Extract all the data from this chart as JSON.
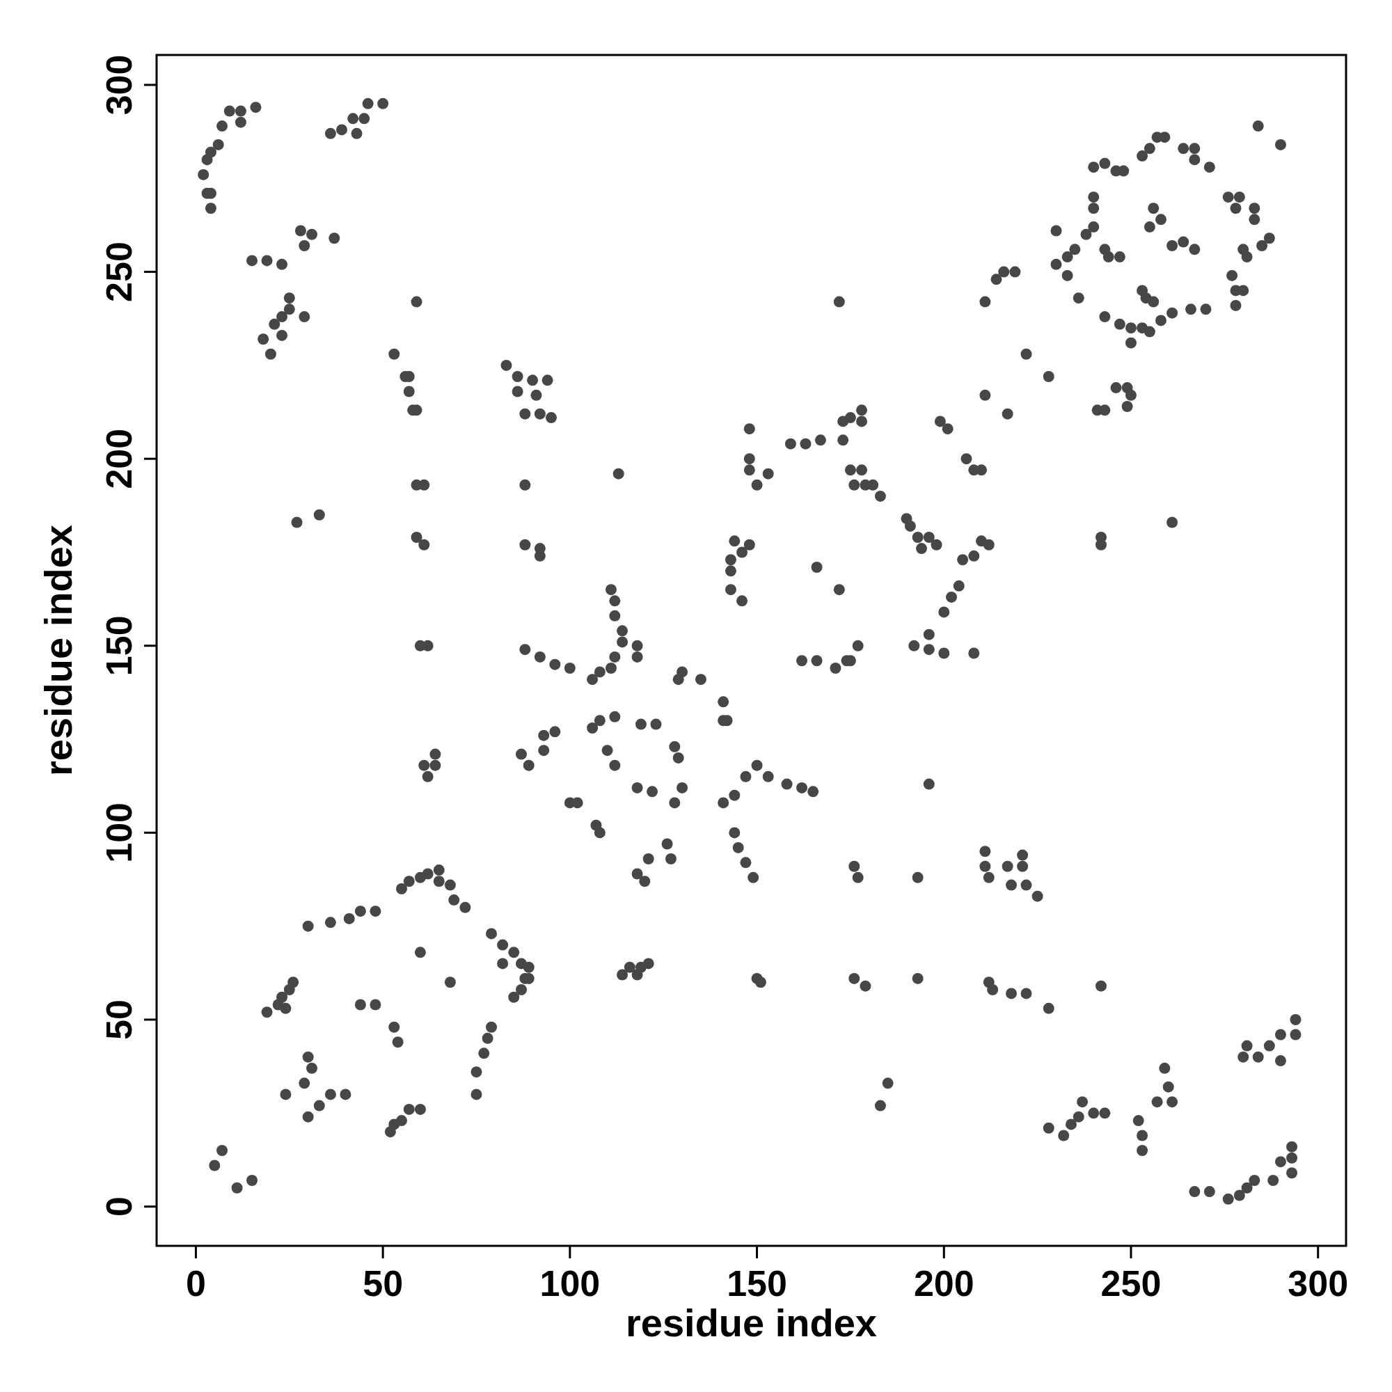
{
  "chart_data": {
    "type": "scatter",
    "xlabel": "residue index",
    "ylabel": "residue index",
    "xlim": [
      -10.5,
      307.5
    ],
    "ylim": [
      -10.5,
      308
    ],
    "xticks": [
      0,
      50,
      100,
      150,
      200,
      250,
      300
    ],
    "yticks": [
      0,
      50,
      100,
      150,
      200,
      250,
      300
    ],
    "marker": "circle",
    "series": [
      {
        "color": "#474747",
        "x": [
          2,
          3,
          4,
          6,
          7,
          9,
          12,
          16,
          3,
          4,
          4,
          12,
          36,
          39,
          42,
          45,
          46,
          50,
          43,
          15,
          19,
          23,
          28,
          31,
          37,
          29,
          18,
          21,
          23,
          25,
          25,
          29,
          20,
          23,
          59,
          53,
          56,
          57,
          57,
          58,
          59,
          59,
          61,
          59,
          61,
          60,
          62,
          27,
          33,
          61,
          62,
          64,
          64,
          83,
          86,
          86,
          90,
          94,
          91,
          88,
          92,
          95,
          88,
          88,
          92,
          92,
          88,
          92,
          96,
          100,
          113,
          106,
          108,
          111,
          112,
          114,
          114,
          112,
          111,
          112,
          118,
          118,
          106,
          108,
          112,
          110,
          112,
          119,
          123,
          128,
          129,
          130,
          128,
          118,
          122,
          87,
          89,
          93,
          96,
          93,
          100,
          102,
          107,
          108,
          118,
          121,
          126,
          127,
          120,
          129,
          130,
          135,
          141,
          141,
          142,
          141,
          144,
          147,
          150,
          153,
          158,
          162,
          165,
          144,
          145,
          147,
          149,
          114,
          116,
          119,
          121,
          118,
          150,
          151,
          176,
          177,
          176,
          179,
          193,
          193,
          196,
          211,
          211,
          212,
          217,
          221,
          221,
          218,
          222,
          225,
          212,
          213,
          218,
          222,
          228,
          242,
          148,
          148,
          148,
          150,
          153,
          144,
          143,
          146,
          148,
          143,
          146,
          143,
          159,
          163,
          167,
          173,
          175,
          178,
          178,
          173,
          166,
          172,
          175,
          178,
          179,
          181,
          183,
          176,
          162,
          166,
          171,
          174,
          177,
          175,
          190,
          191,
          193,
          196,
          198,
          194,
          192,
          196,
          196,
          200,
          208,
          200,
          202,
          204,
          205,
          208,
          210,
          212,
          199,
          201,
          206,
          208,
          210,
          211,
          217,
          211,
          214,
          216,
          219,
          222,
          228,
          230,
          172,
          230,
          233,
          235,
          238,
          240,
          240,
          240,
          236,
          233,
          240,
          243,
          246,
          248,
          243,
          244,
          247,
          243,
          247,
          250,
          253,
          250,
          255,
          258,
          261,
          253,
          254,
          256,
          255,
          258,
          256,
          261,
          264,
          267,
          266,
          270,
          253,
          255,
          257,
          259,
          264,
          267,
          271,
          267,
          276,
          279,
          278,
          283,
          283,
          280,
          281,
          285,
          287,
          284,
          290,
          277,
          278,
          280,
          278,
          241,
          243,
          246,
          249,
          250,
          249,
          242,
          242,
          261,
          19,
          22,
          23,
          25,
          26,
          24,
          30,
          36,
          41,
          44,
          48,
          55,
          57,
          60,
          62,
          65,
          65,
          68,
          69,
          72,
          79,
          82,
          85,
          87,
          82,
          89,
          88,
          87,
          85,
          89,
          60,
          68,
          30,
          31,
          29,
          24,
          30,
          33,
          36,
          40,
          44,
          48,
          53,
          54,
          52,
          55,
          57,
          60,
          53,
          75,
          75,
          77,
          78,
          79,
          5,
          7,
          11,
          15,
          185,
          183,
          228,
          232,
          234,
          236,
          237,
          240,
          243,
          252,
          253,
          253,
          257,
          259,
          260,
          261,
          267,
          271,
          276,
          279,
          281,
          283,
          288,
          290,
          293,
          293,
          293,
          280,
          281,
          284,
          287,
          290,
          294,
          294,
          290
        ],
        "values": [
          276,
          280,
          282,
          284,
          289,
          293,
          293,
          294,
          271,
          271,
          267,
          290,
          287,
          288,
          291,
          291,
          295,
          295,
          287,
          253,
          253,
          252,
          261,
          260,
          259,
          257,
          232,
          236,
          238,
          243,
          240,
          238,
          228,
          233,
          242,
          228,
          222,
          222,
          218,
          213,
          213,
          193,
          193,
          179,
          177,
          150,
          150,
          183,
          185,
          118,
          115,
          121,
          118,
          225,
          222,
          218,
          221,
          221,
          217,
          212,
          212,
          211,
          193,
          177,
          176,
          174,
          149,
          147,
          145,
          144,
          196,
          141,
          143,
          144,
          147,
          151,
          154,
          162,
          165,
          158,
          150,
          147,
          128,
          130,
          131,
          122,
          118,
          129,
          129,
          123,
          120,
          112,
          108,
          112,
          111,
          121,
          118,
          122,
          127,
          126,
          108,
          108,
          102,
          100,
          89,
          93,
          97,
          93,
          87,
          141,
          143,
          141,
          135,
          130,
          130,
          108,
          110,
          115,
          118,
          115,
          113,
          112,
          111,
          100,
          96,
          92,
          88,
          62,
          64,
          64,
          65,
          62,
          61,
          60,
          91,
          88,
          61,
          59,
          61,
          88,
          113,
          95,
          91,
          88,
          91,
          94,
          91,
          86,
          86,
          83,
          60,
          58,
          57,
          57,
          53,
          59,
          208,
          200,
          197,
          193,
          196,
          178,
          173,
          175,
          177,
          165,
          162,
          170,
          204,
          204,
          205,
          210,
          211,
          213,
          210,
          205,
          171,
          165,
          197,
          197,
          193,
          193,
          190,
          193,
          146,
          146,
          144,
          146,
          150,
          146,
          184,
          182,
          179,
          179,
          177,
          176,
          150,
          153,
          149,
          148,
          148,
          159,
          163,
          166,
          173,
          174,
          178,
          177,
          210,
          208,
          200,
          197,
          197,
          217,
          212,
          242,
          248,
          250,
          250,
          228,
          222,
          261,
          242,
          252,
          254,
          256,
          260,
          262,
          270,
          267,
          243,
          249,
          278,
          279,
          277,
          277,
          256,
          254,
          254,
          238,
          236,
          235,
          235,
          231,
          234,
          237,
          239,
          245,
          243,
          242,
          262,
          264,
          267,
          257,
          258,
          256,
          240,
          240,
          281,
          283,
          286,
          286,
          283,
          280,
          278,
          283,
          270,
          270,
          267,
          267,
          264,
          256,
          254,
          257,
          259,
          289,
          284,
          249,
          245,
          245,
          241,
          213,
          213,
          219,
          219,
          217,
          214,
          179,
          177,
          183,
          52,
          54,
          56,
          58,
          60,
          53,
          75,
          76,
          77,
          79,
          79,
          85,
          87,
          88,
          89,
          90,
          87,
          86,
          82,
          80,
          73,
          70,
          68,
          65,
          65,
          64,
          61,
          58,
          56,
          61,
          68,
          60,
          40,
          37,
          33,
          30,
          24,
          27,
          30,
          30,
          54,
          54,
          48,
          44,
          20,
          23,
          26,
          26,
          22,
          36,
          30,
          41,
          45,
          48,
          11,
          15,
          5,
          7,
          33,
          27,
          21,
          19,
          22,
          24,
          28,
          25,
          25,
          23,
          19,
          15,
          28,
          37,
          32,
          28,
          4,
          4,
          2,
          3,
          5,
          7,
          7,
          12,
          13,
          16,
          9,
          40,
          43,
          40,
          43,
          46,
          50,
          46,
          39
        ]
      }
    ]
  }
}
